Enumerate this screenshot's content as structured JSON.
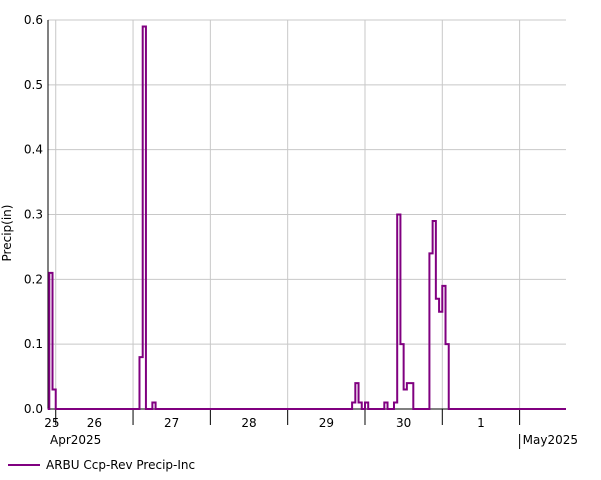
{
  "chart_data": {
    "type": "line",
    "step": true,
    "ylabel": "Precip(in)",
    "xlabel": "",
    "ylim": [
      0,
      0.6
    ],
    "yticks": [
      "0.0",
      "0.1",
      "0.2",
      "0.3",
      "0.4",
      "0.5",
      "0.6"
    ],
    "xrange_days": [
      24.9,
      2.0
    ],
    "day_ticks": [
      "25",
      "26",
      "27",
      "28",
      "29",
      "30",
      "1"
    ],
    "month_labels": [
      "Apr2025",
      "May2025"
    ],
    "grid": true,
    "legend_position": "bottom-left",
    "series": [
      {
        "name": "ARBU Ccp-Rev Precip-Inc",
        "color": "#800080",
        "points": [
          [
            "2025-04-24 21:30",
            0.0
          ],
          [
            "2025-04-24 22:00",
            0.21
          ],
          [
            "2025-04-24 23:00",
            0.03
          ],
          [
            "2025-04-25 00:00",
            0.0
          ],
          [
            "2025-04-26 02:00",
            0.08
          ],
          [
            "2025-04-26 03:00",
            0.59
          ],
          [
            "2025-04-26 04:00",
            0.0
          ],
          [
            "2025-04-26 06:00",
            0.01
          ],
          [
            "2025-04-26 07:00",
            0.0
          ],
          [
            "2025-04-28 20:00",
            0.01
          ],
          [
            "2025-04-28 21:00",
            0.04
          ],
          [
            "2025-04-28 22:00",
            0.01
          ],
          [
            "2025-04-28 23:00",
            0.0
          ],
          [
            "2025-04-29 00:00",
            0.01
          ],
          [
            "2025-04-29 01:00",
            0.0
          ],
          [
            "2025-04-29 06:00",
            0.01
          ],
          [
            "2025-04-29 07:00",
            0.0
          ],
          [
            "2025-04-29 09:00",
            0.01
          ],
          [
            "2025-04-29 10:00",
            0.3
          ],
          [
            "2025-04-29 11:00",
            0.1
          ],
          [
            "2025-04-29 12:00",
            0.03
          ],
          [
            "2025-04-29 13:00",
            0.04
          ],
          [
            "2025-04-29 15:00",
            0.0
          ],
          [
            "2025-04-29 20:00",
            0.24
          ],
          [
            "2025-04-29 21:00",
            0.29
          ],
          [
            "2025-04-29 22:00",
            0.17
          ],
          [
            "2025-04-29 23:00",
            0.15
          ],
          [
            "2025-04-30 00:00",
            0.19
          ],
          [
            "2025-04-30 01:00",
            0.1
          ],
          [
            "2025-04-30 02:00",
            0.0
          ]
        ]
      }
    ]
  }
}
